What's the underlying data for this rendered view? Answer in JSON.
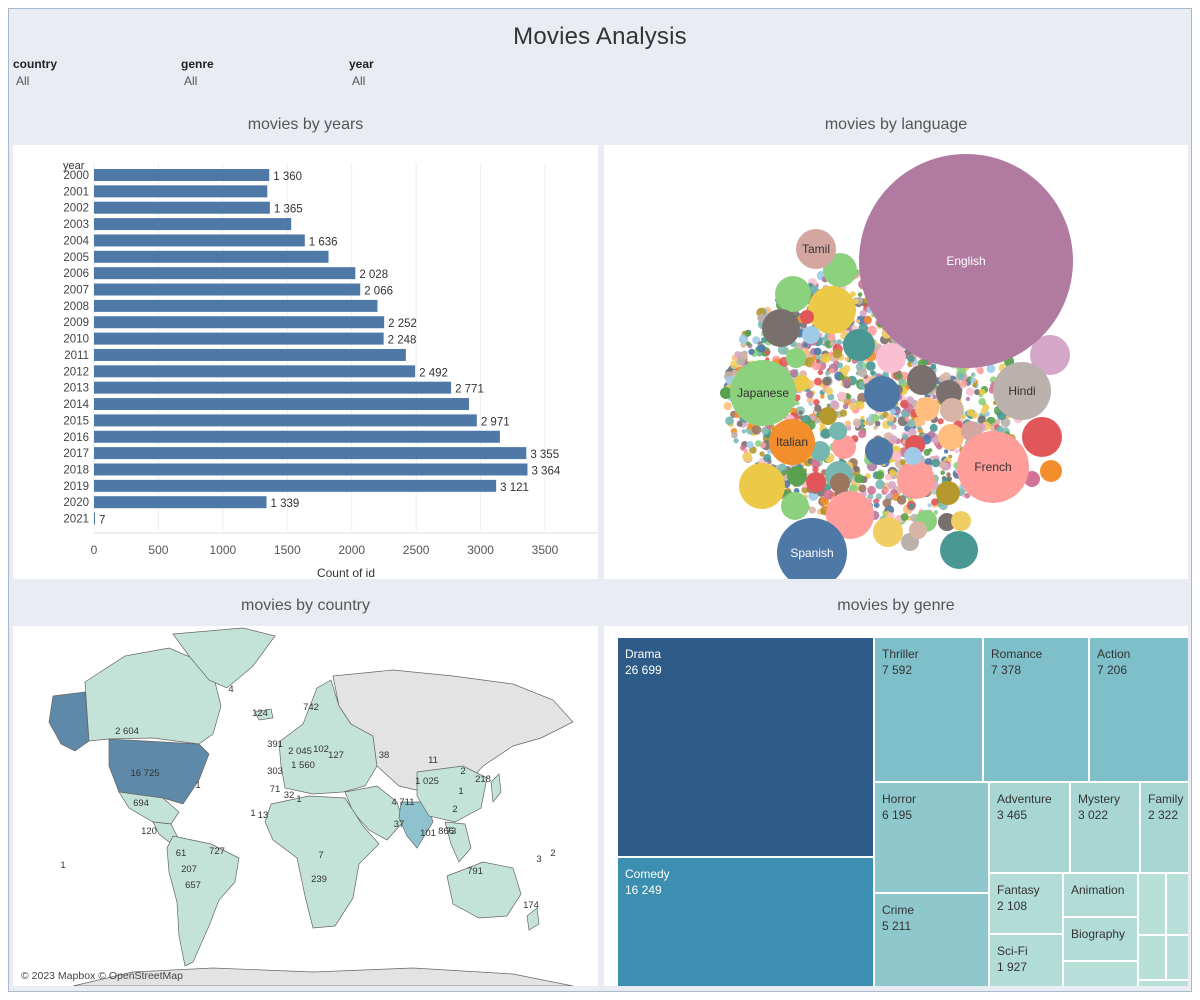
{
  "dashboard": {
    "title": "Movies Analysis"
  },
  "filters": [
    {
      "label": "country",
      "value": "All"
    },
    {
      "label": "genre",
      "value": "All"
    },
    {
      "label": "year",
      "value": "All"
    }
  ],
  "panels": {
    "years_title": "movies by years",
    "language_title": "movies by language",
    "country_title": "movies by country",
    "genre_title": "movies by genre"
  },
  "chart_data": [
    {
      "type": "bar",
      "orientation": "horizontal",
      "title": "movies by years",
      "category_header": "year",
      "xlabel": "Count of id",
      "ylabel": "year",
      "categories": [
        "2000",
        "2001",
        "2002",
        "2003",
        "2004",
        "2005",
        "2006",
        "2007",
        "2008",
        "2009",
        "2010",
        "2011",
        "2012",
        "2013",
        "2014",
        "2015",
        "2016",
        "2017",
        "2018",
        "2019",
        "2020",
        "2021"
      ],
      "values": [
        1360,
        1345,
        1365,
        1530,
        1636,
        1820,
        2028,
        2066,
        2200,
        2252,
        2248,
        2420,
        2492,
        2771,
        2910,
        2971,
        3150,
        3355,
        3364,
        3121,
        1339,
        7
      ],
      "labels": [
        "1 360",
        "",
        "1 365",
        "",
        "1 636",
        "",
        "2 028",
        "2 066",
        "",
        "2 252",
        "2 248",
        "",
        "2 492",
        "2 771",
        "",
        "2 971",
        "",
        "3 355",
        "3 364",
        "3 121",
        "1 339",
        "7"
      ],
      "xticks": [
        0,
        500,
        1000,
        1500,
        2000,
        2500,
        3000,
        3500
      ],
      "xlim": [
        0,
        3700
      ],
      "grid": true,
      "color": "#4e79a7"
    },
    {
      "type": "bubble",
      "title": "movies by language",
      "labeled_bubbles": [
        {
          "label": "English",
          "color": "#b07aa1"
        },
        {
          "label": "French",
          "color": "#ff9d9a"
        },
        {
          "label": "Japanese",
          "color": "#8cd17d"
        },
        {
          "label": "Spanish",
          "color": "#4e79a7"
        },
        {
          "label": "Hindi",
          "color": "#bab0ac"
        },
        {
          "label": "Italian",
          "color": "#f28e2b"
        },
        {
          "label": "Tamil",
          "color": "#d4a6a0"
        }
      ]
    },
    {
      "type": "map",
      "title": "movies by country",
      "credit": "© 2023 Mapbox © OpenStreetMap",
      "labels": [
        "4",
        "124",
        "742",
        "2 604",
        "16 725",
        "1",
        "694",
        "120",
        "391",
        "2 045",
        "1 560",
        "303",
        "102",
        "127",
        "38",
        "11",
        "1 025",
        "2",
        "218",
        "71",
        "1",
        "32",
        "4 711",
        "1",
        "2",
        "866",
        "37",
        "101",
        "73",
        "1",
        "13",
        "61",
        "727",
        "207",
        "657",
        "791",
        "174",
        "3",
        "2",
        "1",
        "239",
        "7"
      ]
    },
    {
      "type": "treemap",
      "title": "movies by genre",
      "items": [
        {
          "name": "Drama",
          "value": "26 699"
        },
        {
          "name": "Comedy",
          "value": "16 249"
        },
        {
          "name": "Thriller",
          "value": "7 592"
        },
        {
          "name": "Romance",
          "value": "7 378"
        },
        {
          "name": "Action",
          "value": "7 206"
        },
        {
          "name": "Horror",
          "value": "6 195"
        },
        {
          "name": "Crime",
          "value": "5 211"
        },
        {
          "name": "Adventure",
          "value": "3 465"
        },
        {
          "name": "Mystery",
          "value": "3 022"
        },
        {
          "name": "Family",
          "value": "2 322"
        },
        {
          "name": "Fantasy",
          "value": "2 108"
        },
        {
          "name": "Sci-Fi",
          "value": "1 927"
        },
        {
          "name": "Animation",
          "value": ""
        },
        {
          "name": "Biography",
          "value": ""
        }
      ]
    }
  ]
}
